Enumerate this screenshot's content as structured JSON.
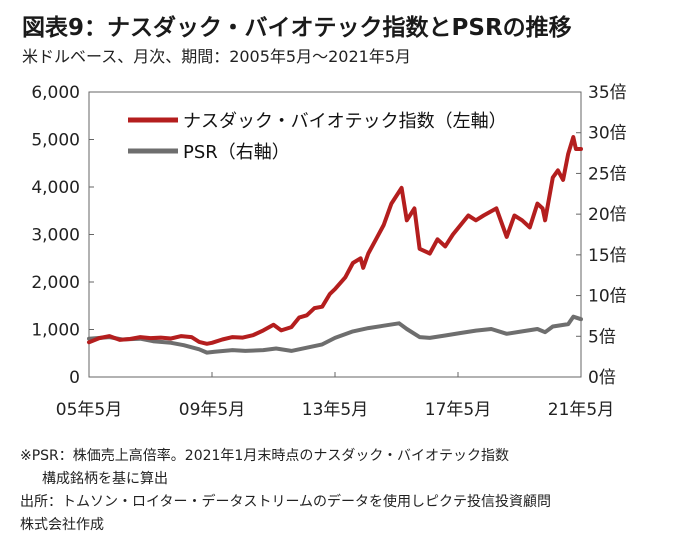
{
  "title": "図表9：ナスダック・バイオテック指数とPSRの推移",
  "subtitle": "米ドルベース、月次、期間：2005年5月～2021年5月",
  "notes": [
    "※PSR：株価売上高倍率。2021年1月末時点のナスダック・バイオテック指数",
    "構成銘柄を基に算出",
    "出所：トムソン・ロイター・データストリームのデータを使用しピクテ投信投資顧問",
    "株式会社作成"
  ],
  "chart_data": {
    "type": "line",
    "x_range": [
      "2005-05",
      "2021-05"
    ],
    "x_ticks": [
      "05年5月",
      "09年5月",
      "13年5月",
      "17年5月",
      "21年5月"
    ],
    "y_left": {
      "ticks": [
        "0",
        "1,000",
        "2,000",
        "3,000",
        "4,000",
        "5,000",
        "6,000"
      ],
      "range": [
        0,
        6000
      ]
    },
    "y_right": {
      "ticks": [
        "0倍",
        "5倍",
        "10倍",
        "15倍",
        "20倍",
        "25倍",
        "30倍",
        "35倍"
      ],
      "range": [
        0,
        35
      ]
    },
    "legend_position": "top-left",
    "grid": false,
    "series": [
      {
        "name": "ナスダック・バイオテック指数（左軸）",
        "axis": "left",
        "color": "#b41e1e",
        "points": [
          [
            "2005-05",
            730
          ],
          [
            "2005-09",
            820
          ],
          [
            "2006-01",
            860
          ],
          [
            "2006-05",
            780
          ],
          [
            "2006-09",
            800
          ],
          [
            "2007-01",
            840
          ],
          [
            "2007-05",
            820
          ],
          [
            "2007-09",
            830
          ],
          [
            "2008-01",
            810
          ],
          [
            "2008-05",
            860
          ],
          [
            "2008-09",
            840
          ],
          [
            "2008-12",
            740
          ],
          [
            "2009-03",
            700
          ],
          [
            "2009-05",
            720
          ],
          [
            "2009-09",
            790
          ],
          [
            "2010-01",
            840
          ],
          [
            "2010-05",
            830
          ],
          [
            "2010-09",
            880
          ],
          [
            "2011-01",
            980
          ],
          [
            "2011-05",
            1100
          ],
          [
            "2011-08",
            980
          ],
          [
            "2011-12",
            1050
          ],
          [
            "2012-03",
            1250
          ],
          [
            "2012-06",
            1300
          ],
          [
            "2012-09",
            1450
          ],
          [
            "2012-12",
            1480
          ],
          [
            "2013-03",
            1750
          ],
          [
            "2013-05",
            1850
          ],
          [
            "2013-09",
            2100
          ],
          [
            "2013-12",
            2400
          ],
          [
            "2014-03",
            2500
          ],
          [
            "2014-04",
            2300
          ],
          [
            "2014-06",
            2600
          ],
          [
            "2014-09",
            2900
          ],
          [
            "2014-12",
            3200
          ],
          [
            "2015-03",
            3650
          ],
          [
            "2015-07",
            3980
          ],
          [
            "2015-09",
            3300
          ],
          [
            "2015-12",
            3550
          ],
          [
            "2016-02",
            2700
          ],
          [
            "2016-06",
            2600
          ],
          [
            "2016-09",
            2900
          ],
          [
            "2016-12",
            2750
          ],
          [
            "2017-03",
            3000
          ],
          [
            "2017-06",
            3200
          ],
          [
            "2017-09",
            3400
          ],
          [
            "2017-12",
            3300
          ],
          [
            "2018-03",
            3400
          ],
          [
            "2018-08",
            3550
          ],
          [
            "2018-12",
            2950
          ],
          [
            "2019-03",
            3400
          ],
          [
            "2019-06",
            3300
          ],
          [
            "2019-09",
            3150
          ],
          [
            "2019-12",
            3650
          ],
          [
            "2020-02",
            3550
          ],
          [
            "2020-03",
            3300
          ],
          [
            "2020-06",
            4200
          ],
          [
            "2020-08",
            4350
          ],
          [
            "2020-10",
            4150
          ],
          [
            "2020-12",
            4700
          ],
          [
            "2021-02",
            5050
          ],
          [
            "2021-03",
            4800
          ],
          [
            "2021-05",
            4800
          ]
        ]
      },
      {
        "name": "PSR（右軸）",
        "axis": "right",
        "color": "#6e6e6e",
        "points": [
          [
            "2005-05",
            4.7
          ],
          [
            "2006-01",
            4.9
          ],
          [
            "2006-06",
            4.6
          ],
          [
            "2007-01",
            4.7
          ],
          [
            "2007-06",
            4.4
          ],
          [
            "2008-01",
            4.2
          ],
          [
            "2008-06",
            3.9
          ],
          [
            "2008-12",
            3.4
          ],
          [
            "2009-03",
            3.0
          ],
          [
            "2009-06",
            3.1
          ],
          [
            "2010-01",
            3.3
          ],
          [
            "2010-06",
            3.2
          ],
          [
            "2011-01",
            3.3
          ],
          [
            "2011-06",
            3.5
          ],
          [
            "2011-12",
            3.2
          ],
          [
            "2012-06",
            3.6
          ],
          [
            "2012-12",
            4.0
          ],
          [
            "2013-05",
            4.8
          ],
          [
            "2013-12",
            5.6
          ],
          [
            "2014-06",
            6.0
          ],
          [
            "2014-12",
            6.3
          ],
          [
            "2015-06",
            6.6
          ],
          [
            "2015-09",
            5.9
          ],
          [
            "2016-02",
            4.9
          ],
          [
            "2016-06",
            4.8
          ],
          [
            "2016-12",
            5.1
          ],
          [
            "2017-06",
            5.4
          ],
          [
            "2017-12",
            5.7
          ],
          [
            "2018-06",
            5.9
          ],
          [
            "2018-12",
            5.3
          ],
          [
            "2019-06",
            5.6
          ],
          [
            "2019-12",
            5.9
          ],
          [
            "2020-03",
            5.5
          ],
          [
            "2020-06",
            6.2
          ],
          [
            "2020-12",
            6.5
          ],
          [
            "2021-02",
            7.4
          ],
          [
            "2021-05",
            7.1
          ]
        ]
      }
    ]
  }
}
